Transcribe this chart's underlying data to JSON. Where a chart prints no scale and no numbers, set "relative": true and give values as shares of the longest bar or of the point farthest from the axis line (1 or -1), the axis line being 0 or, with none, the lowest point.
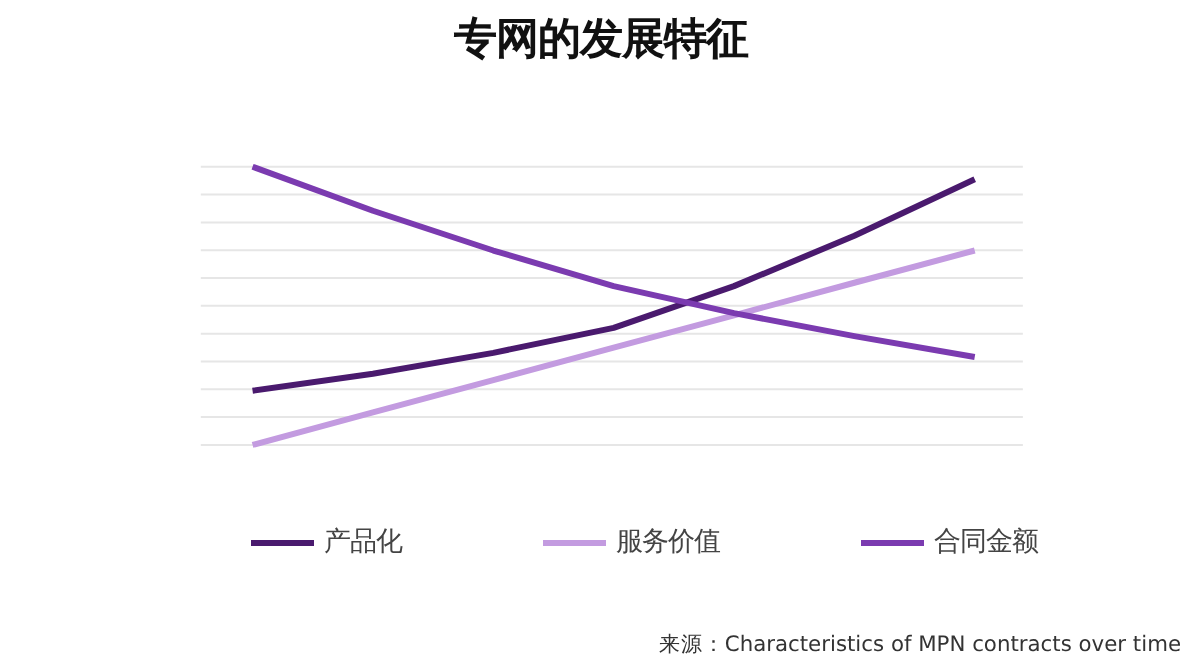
{
  "chart_data": {
    "type": "line",
    "title": "专网的发展特征",
    "relative": true,
    "categories": [
      null,
      null,
      null,
      null,
      null,
      null,
      null
    ],
    "series": [
      {
        "name": "产品化",
        "color": "#4a1a6e",
        "values": [
          0.195,
          0.256,
          0.331,
          0.421,
          0.571,
          0.752,
          0.955
        ]
      },
      {
        "name": "服务价值",
        "color": "#c39be0",
        "values": [
          0,
          0.117,
          0.233,
          0.35,
          0.466,
          0.583,
          0.699
        ]
      },
      {
        "name": "合同金额",
        "color": "#7b3bb0",
        "values": [
          1.0,
          0.842,
          0.699,
          0.571,
          0.474,
          0.391,
          0.316
        ]
      }
    ],
    "grid": "y",
    "legend": "bottom",
    "line_style": "solid",
    "marker": "none",
    "annotations": [
      "来源：Characteristics of MPN contracts over time"
    ]
  }
}
